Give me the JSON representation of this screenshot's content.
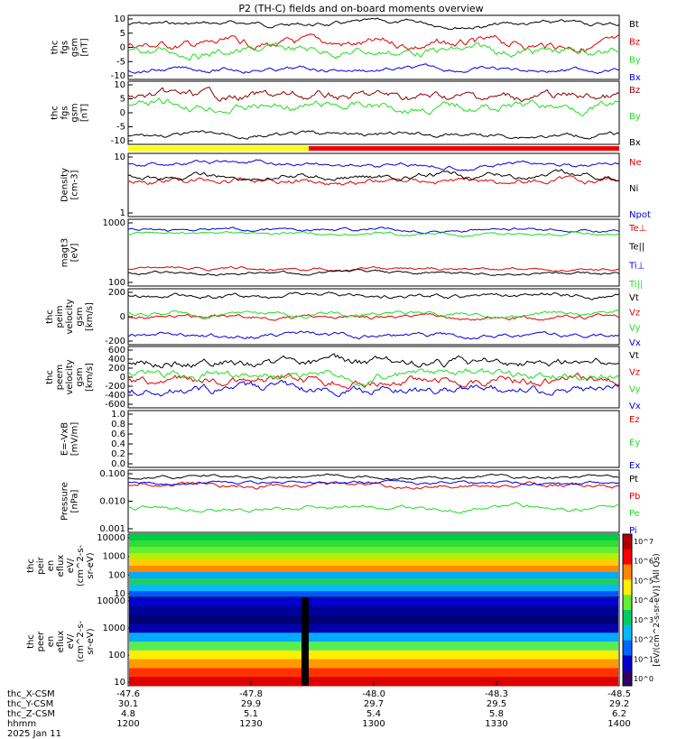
{
  "title": "P2 (TH-C) fields and on-board moments overview",
  "colors": {
    "black": "#000000",
    "red": "#e00000",
    "green": "#22dd22",
    "blue": "#0000e0",
    "mode_yellow": "#ffff00",
    "mode_red": "#ee0000"
  },
  "panels": [
    {
      "id": "fgs",
      "ylabel": [
        "thc",
        "fgs",
        "gsm",
        "[nT]"
      ],
      "ticks": [
        "10",
        "5",
        "0",
        "-5",
        "-10"
      ],
      "legend": [
        {
          "name": "Bt",
          "color": "#000000"
        },
        {
          "name": "Bz",
          "color": "#e00000"
        },
        {
          "name": "By",
          "color": "#22dd22"
        },
        {
          "name": "Bx",
          "color": "#0000e0"
        }
      ]
    },
    {
      "id": "fgs_dsl",
      "ylabel": [
        "thc",
        "fgs",
        "gsm",
        "[nT]"
      ],
      "ticks": [
        "10",
        "5",
        "0",
        "-5",
        "-10"
      ],
      "legend": [
        {
          "name": "Bz",
          "color": "#8b0000"
        },
        {
          "name": "By",
          "color": "#22dd22"
        },
        {
          "name": "Bx",
          "color": "#000000"
        }
      ]
    },
    {
      "id": "density",
      "ylabel": [
        "Density",
        "[cm-3]"
      ],
      "ticks": [
        "10",
        "1"
      ],
      "legend": [
        {
          "name": "Ne",
          "color": "#e00000"
        },
        {
          "name": "Ni",
          "color": "#000000"
        },
        {
          "name": "Npot",
          "color": "#0000e0"
        }
      ]
    },
    {
      "id": "temp",
      "ylabel": [
        "magt3",
        "[eV]"
      ],
      "ticks": [
        "1000",
        "100"
      ],
      "legend": [
        {
          "name": "Te⊥",
          "color": "#e00000"
        },
        {
          "name": "Te||",
          "color": "#000000"
        },
        {
          "name": "Ti⊥",
          "color": "#0000e0"
        },
        {
          "name": "Ti||",
          "color": "#22dd22"
        }
      ]
    },
    {
      "id": "peim",
      "ylabel": [
        "thc",
        "peim",
        "velocity",
        "gsm",
        "[km/s]"
      ],
      "ticks": [
        "200",
        "0",
        "-200"
      ],
      "legend": [
        {
          "name": "Vt",
          "color": "#000000"
        },
        {
          "name": "Vz",
          "color": "#e00000"
        },
        {
          "name": "Vy",
          "color": "#22dd22"
        },
        {
          "name": "Vx",
          "color": "#0000e0"
        }
      ]
    },
    {
      "id": "peem",
      "ylabel": [
        "thc",
        "peem",
        "velocity",
        "gsm",
        "[km/s]"
      ],
      "ticks": [
        "600",
        "400",
        "200",
        "0",
        "-200",
        "-400",
        "-600"
      ],
      "legend": [
        {
          "name": "Vt",
          "color": "#000000"
        },
        {
          "name": "Vz",
          "color": "#e00000"
        },
        {
          "name": "Vy",
          "color": "#22dd22"
        },
        {
          "name": "Vx",
          "color": "#0000e0"
        }
      ]
    },
    {
      "id": "efield",
      "ylabel": [
        "E=-VxB",
        "[mV/m]"
      ],
      "ticks": [
        "1.0",
        "0.8",
        "0.6",
        "0.4",
        "0.2",
        "0.0"
      ],
      "legend": [
        {
          "name": "Ez",
          "color": "#e00000"
        },
        {
          "name": "Ey",
          "color": "#22dd22"
        },
        {
          "name": "Ex",
          "color": "#0000e0"
        }
      ]
    },
    {
      "id": "pressure",
      "ylabel": [
        "Pressure",
        "[nPa]"
      ],
      "ticks": [
        "0.100",
        "0.010",
        "0.001"
      ],
      "legend": [
        {
          "name": "Pt",
          "color": "#000000"
        },
        {
          "name": "Pb",
          "color": "#e00000"
        },
        {
          "name": "Pe",
          "color": "#22dd22"
        },
        {
          "name": "Pi",
          "color": "#0000e0"
        }
      ]
    },
    {
      "id": "peir",
      "ylabel": [
        "thc",
        "peir",
        "en",
        "eflux",
        "eV/",
        "(cm^2-s-",
        "sr-eV)"
      ],
      "ticks": [
        "10000",
        "1000",
        "100",
        "10"
      ]
    },
    {
      "id": "peer",
      "ylabel": [
        "thc",
        "peer",
        "en",
        "eflux",
        "eV/",
        "(cm^2-s-",
        "sr-eV)"
      ],
      "ticks": [
        "10000",
        "1000",
        "100",
        "10"
      ]
    }
  ],
  "colorbar_label": "[eV/(cm^2-s-sr-eV)] (All Qs)",
  "colorbar_ticks": [
    "10^7",
    "10^6",
    "10^5",
    "10^4",
    "10^3",
    "10^2",
    "10^1",
    "10^0"
  ],
  "footer": {
    "rows": [
      {
        "label": "thc_X-CSM",
        "values": [
          "-47.6",
          "-47.8",
          "-48.0",
          "-48.3",
          "-48.5"
        ]
      },
      {
        "label": "thc_Y-CSM",
        "values": [
          "30.1",
          "29.9",
          "29.7",
          "29.5",
          "29.2"
        ]
      },
      {
        "label": "thc_Z-CSM",
        "values": [
          "4.8",
          "5.1",
          "5.4",
          "5.8",
          "6.2"
        ]
      },
      {
        "label": "hhmm",
        "values": [
          "1200",
          "1230",
          "1300",
          "1330",
          "1400"
        ]
      }
    ],
    "date": "2025 Jan 11"
  },
  "chart_data": {
    "type": "line",
    "x_label": "hhmm",
    "x_ticks": [
      "1200",
      "1230",
      "1300",
      "1330",
      "1400"
    ],
    "xlim": [
      "1200",
      "1400"
    ],
    "series": [
      {
        "panel": "fgs",
        "name": "Bt",
        "approx_level": 8
      },
      {
        "panel": "fgs",
        "name": "Bz",
        "approx_level": 2
      },
      {
        "panel": "fgs",
        "name": "By",
        "approx_level": 0
      },
      {
        "panel": "fgs",
        "name": "Bx",
        "approx_level": -7
      },
      {
        "panel": "peim",
        "name": "Vt",
        "approx_level": 280
      },
      {
        "panel": "peim",
        "name": "Vx",
        "approx_level": -260
      },
      {
        "panel": "pressure",
        "name": "Pt",
        "approx_level": 0.05
      }
    ]
  }
}
